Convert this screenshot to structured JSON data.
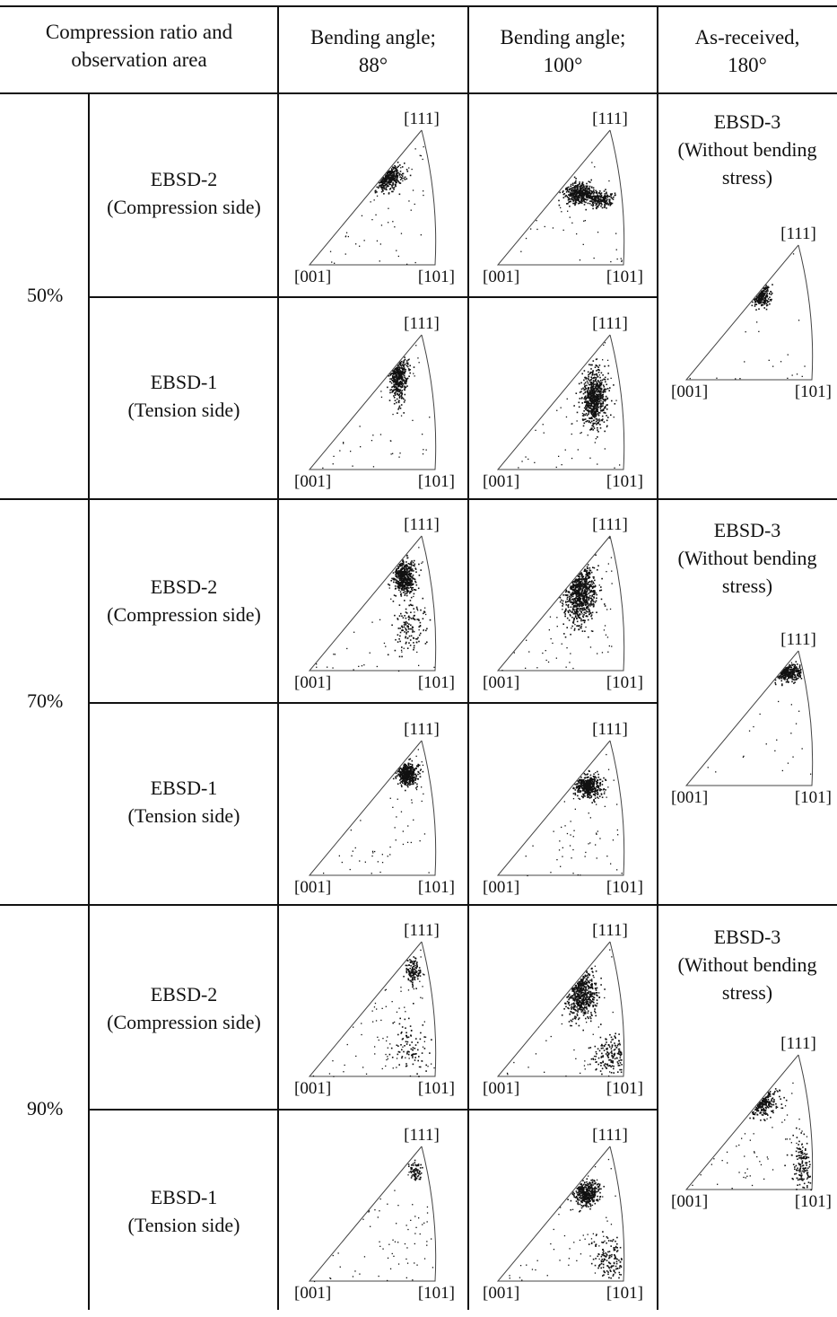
{
  "header": {
    "col1_line1": "Compression ratio and",
    "col1_line2": "observation area",
    "col2_line1": "Bending angle;",
    "col2_line2": "88°",
    "col3_line1": "Bending angle;",
    "col3_line2": "100°",
    "col4_line1": "As-received,",
    "col4_line2": "180°"
  },
  "rows": [
    {
      "ratio": "50%",
      "compression_name": "EBSD-2",
      "compression_sub": "(Compression side)",
      "tension_name": "EBSD-1",
      "tension_sub": "(Tension side)",
      "asreceived_name": "EBSD-3",
      "asreceived_sub1": "(Without bending",
      "asreceived_sub2": "stress)"
    },
    {
      "ratio": "70%",
      "compression_name": "EBSD-2",
      "compression_sub": "(Compression side)",
      "tension_name": "EBSD-1",
      "tension_sub": "(Tension side)",
      "asreceived_name": "EBSD-3",
      "asreceived_sub1": "(Without bending",
      "asreceived_sub2": "stress)"
    },
    {
      "ratio": "90%",
      "compression_name": "EBSD-2",
      "compression_sub": "(Compression side)",
      "tension_name": "EBSD-1",
      "tension_sub": "(Tension side)",
      "asreceived_name": "EBSD-3",
      "asreceived_sub1": "(Without bending",
      "asreceived_sub2": "stress)"
    }
  ],
  "pole_figure_labels": {
    "top": "[111]",
    "left": "[001]",
    "right": "[101]"
  }
}
